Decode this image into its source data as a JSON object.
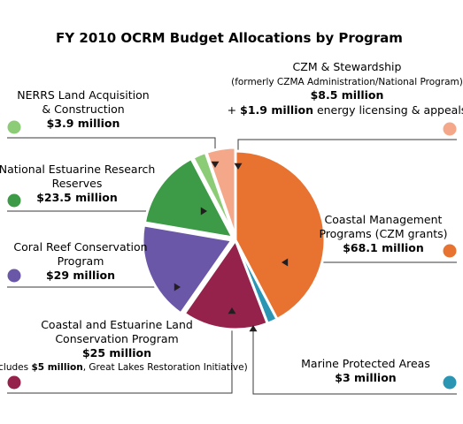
{
  "chart_data": {
    "type": "pie",
    "title": "FY 2010 OCRM Budget Allocations by Program",
    "slices": [
      {
        "key": "czm",
        "lines": [
          "Coastal Management",
          "Programs (CZM grants)"
        ],
        "amount": "$68.1 million",
        "value": 68.1,
        "color": "#e8722f"
      },
      {
        "key": "mpa",
        "lines": [
          "Marine Protected Areas"
        ],
        "amount": "$3 million",
        "value": 3,
        "color": "#2b95b4"
      },
      {
        "key": "celcp",
        "lines": [
          "Coastal and Estuarine Land",
          "Conservation Program"
        ],
        "amount": "$25 million",
        "value": 25,
        "color": "#95224a",
        "note_pre": "(Includes ",
        "note_bold": "$5 million",
        "note_post": ", Great Lakes Restoration Initiative)"
      },
      {
        "key": "coral",
        "lines": [
          "Coral Reef Conservation",
          "Program"
        ],
        "amount": "$29 million",
        "value": 29,
        "color": "#6b57a7"
      },
      {
        "key": "nerrs",
        "lines": [
          "National Estuarine Research",
          "Reserves"
        ],
        "amount": "$23.5 million",
        "value": 23.5,
        "color": "#3d9a46"
      },
      {
        "key": "nerrs_land",
        "lines": [
          "NERRS Land Acquisition",
          "& Construction"
        ],
        "amount": "$3.9 million",
        "value": 3.9,
        "color": "#8ccc77"
      },
      {
        "key": "stewardship",
        "lines": [
          "CZM & Stewardship"
        ],
        "sub": "(formerly CZMA Administration/National Program)",
        "amount": "$8.5 million",
        "extra_pre": "+ ",
        "extra_bold": "$1.9 million",
        "extra_post": " energy licensing & appeals",
        "value": 8.5,
        "color": "#f5a889"
      }
    ]
  }
}
